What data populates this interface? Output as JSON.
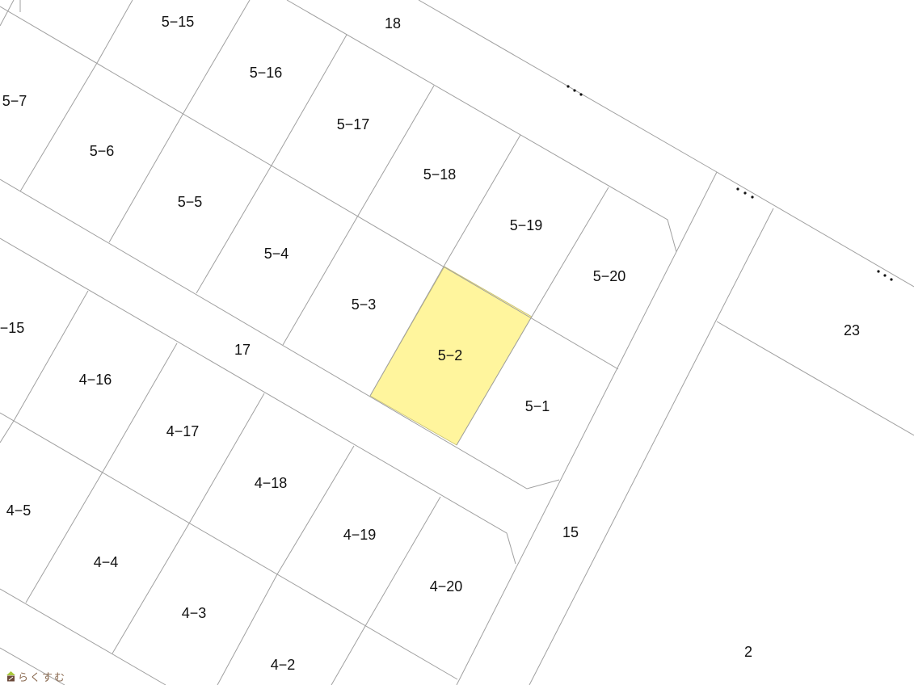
{
  "map": {
    "highlight_color": "#fff59d",
    "line_color": "#a0a0a0",
    "highlighted_parcel": "5-2",
    "labels": {
      "p5_15": "5−15",
      "r18": "18",
      "p5_16": "5−16",
      "p5_7": "5−7",
      "p5_17": "5−17",
      "p5_6": "5−6",
      "p5_18": "5−18",
      "p5_5": "5−5",
      "p5_19": "5−19",
      "p5_4": "5−4",
      "p5_20": "5−20",
      "p5_3": "5−3",
      "p23": "23",
      "p4_15": "−15",
      "p5_2": "5−2",
      "r17": "17",
      "p4_16": "4−16",
      "p5_1": "5−1",
      "p4_17": "4−17",
      "p4_18": "4−18",
      "p4_5": "4−5",
      "r15": "15",
      "p4_19": "4−19",
      "p4_4": "4−4",
      "p4_20": "4−20",
      "p4_3": "4−3",
      "p2": "2",
      "p4_2": "4−2"
    }
  },
  "logo": {
    "text": "らくすむ",
    "icon": "house-icon"
  }
}
